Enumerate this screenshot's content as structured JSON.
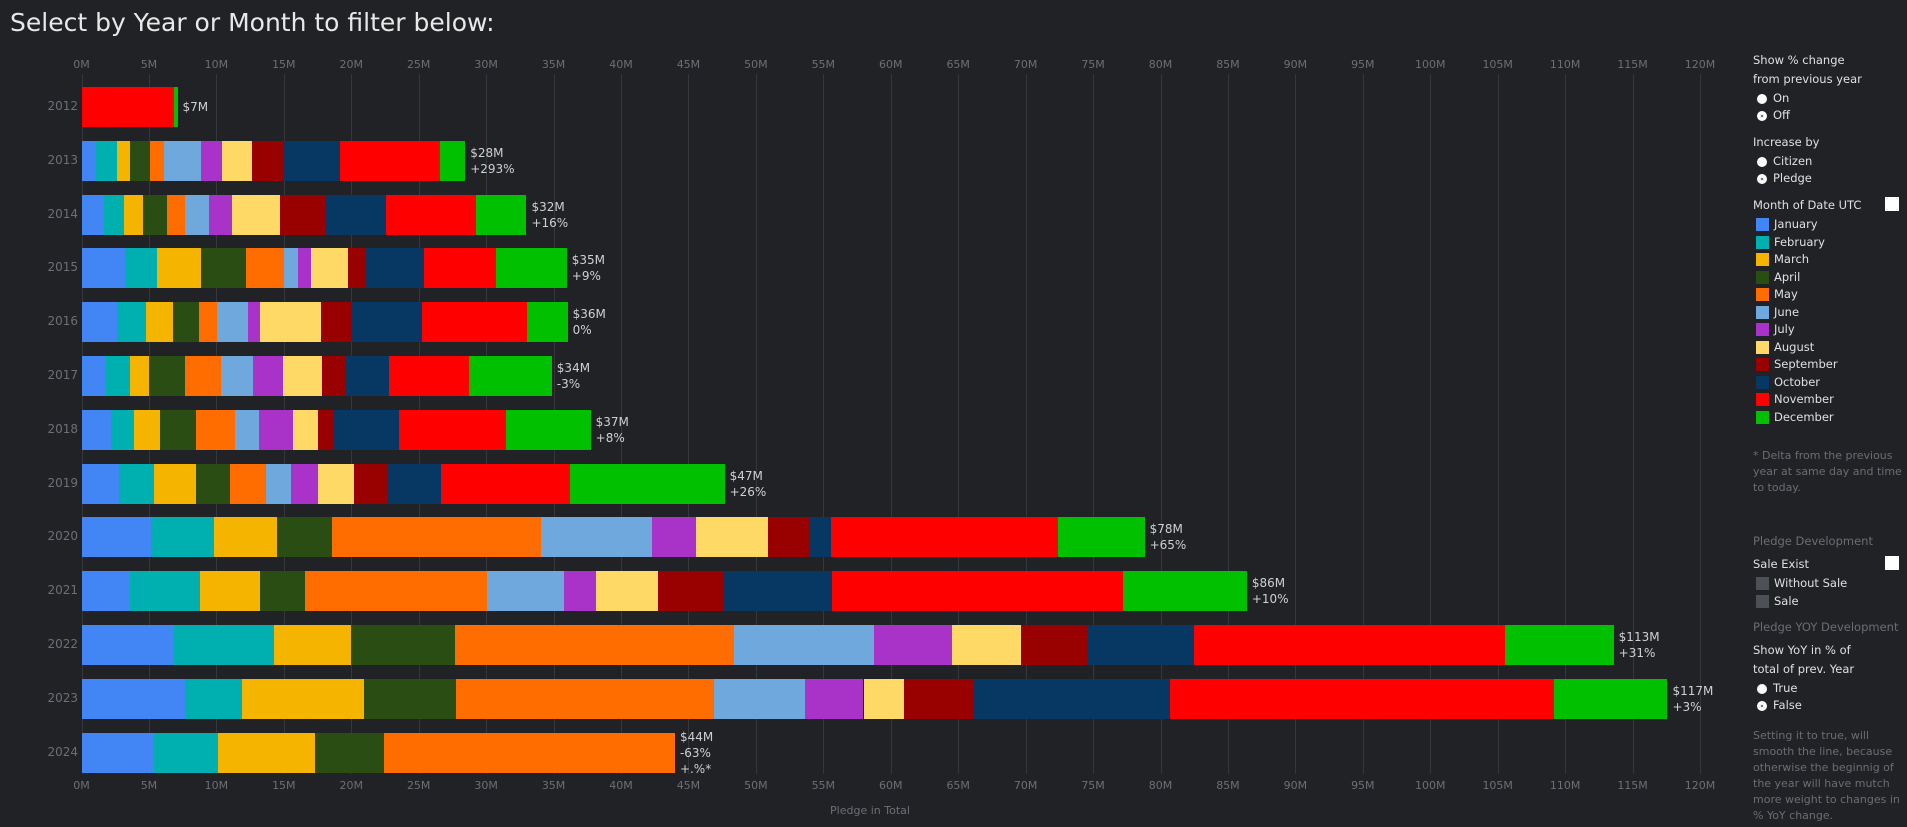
{
  "title": "Select by Year or Month to filter below:",
  "chart_data": {
    "type": "bar",
    "orientation": "horizontal-stacked",
    "xlabel": "Pledge in Total",
    "xlim": [
      0,
      120
    ],
    "x_ticks": [
      "0M",
      "5M",
      "10M",
      "15M",
      "20M",
      "25M",
      "30M",
      "35M",
      "40M",
      "45M",
      "50M",
      "55M",
      "60M",
      "65M",
      "70M",
      "75M",
      "80M",
      "85M",
      "90M",
      "95M",
      "100M",
      "105M",
      "110M",
      "115M",
      "120M"
    ],
    "series_names": [
      "January",
      "February",
      "March",
      "April",
      "May",
      "June",
      "July",
      "August",
      "September",
      "October",
      "November",
      "December"
    ],
    "colors": [
      "#4285f4",
      "#00b0b0",
      "#f4b400",
      "#2a4d14",
      "#ff6d00",
      "#6fa8dc",
      "#a932c8",
      "#ffd966",
      "#990000",
      "#073763",
      "#ff0000",
      "#00c000"
    ],
    "rows": [
      {
        "year": "2012",
        "values": [
          0,
          0,
          0,
          0,
          0,
          0,
          0,
          0,
          0,
          0,
          6.85,
          0.27
        ],
        "label": "$7M",
        "change": ""
      },
      {
        "year": "2013",
        "values": [
          1.08,
          1.56,
          0.99,
          1.42,
          1.08,
          2.76,
          1.5,
          2.22,
          2.44,
          4.09,
          7.41,
          1.9
        ],
        "label": "$28M",
        "change": "+293%"
      },
      {
        "year": "2014",
        "values": [
          1.7,
          1.45,
          1.42,
          1.79,
          1.34,
          1.79,
          1.65,
          3.55,
          3.44,
          4.43,
          6.68,
          3.75
        ],
        "label": "$32M",
        "change": "+16%"
      },
      {
        "year": "2015",
        "values": [
          3.25,
          2.34,
          3.25,
          3.34,
          2.8,
          1.08,
          0.99,
          2.7,
          1.35,
          4.33,
          5.32,
          5.23
        ],
        "label": "$35M",
        "change": "+9%"
      },
      {
        "year": "2016",
        "values": [
          2.61,
          2.16,
          1.98,
          1.98,
          1.35,
          2.25,
          0.9,
          4.51,
          2.34,
          5.14,
          7.84,
          2.98
        ],
        "label": "$36M",
        "change": "0%"
      },
      {
        "year": "2017",
        "values": [
          1.8,
          1.8,
          1.44,
          2.61,
          2.7,
          2.34,
          2.25,
          2.89,
          1.71,
          3.25,
          5.95,
          6.13
        ],
        "label": "$34M",
        "change": "-3%"
      },
      {
        "year": "2018",
        "values": [
          2.16,
          1.71,
          1.98,
          2.61,
          2.89,
          1.8,
          2.52,
          1.89,
          1.17,
          4.78,
          7.93,
          6.31
        ],
        "label": "$37M",
        "change": "+8%"
      },
      {
        "year": "2019",
        "values": [
          2.8,
          2.61,
          3.07,
          2.52,
          2.7,
          1.8,
          2.07,
          2.61,
          2.52,
          3.97,
          9.56,
          11.45
        ],
        "label": "$47M",
        "change": "+26%"
      },
      {
        "year": "2020",
        "values": [
          5.14,
          4.69,
          4.69,
          4.06,
          15.51,
          8.21,
          3.25,
          5.32,
          3.07,
          1.62,
          16.86,
          6.4
        ],
        "label": "$78M",
        "change": "+65%"
      },
      {
        "year": "2021",
        "values": [
          3.61,
          5.14,
          4.51,
          3.34,
          13.44,
          5.77,
          2.34,
          4.6,
          4.87,
          8.03,
          21.55,
          9.2
        ],
        "label": "$86M",
        "change": "+10%"
      },
      {
        "year": "2022",
        "values": [
          6.85,
          7.39,
          5.77,
          7.66,
          20.74,
          10.37,
          5.77,
          5.14,
          4.96,
          7.84,
          23.08,
          8.03
        ],
        "label": "$113M",
        "change": "+31%"
      },
      {
        "year": "2023",
        "values": [
          7.66,
          4.24,
          9.02,
          6.85,
          19.12,
          6.76,
          4.33,
          2.98,
          5.14,
          14.61,
          28.49,
          8.39
        ],
        "label": "$117M",
        "change": "+3%"
      },
      {
        "year": "2024",
        "values": [
          5.41,
          4.69,
          7.21,
          5.14,
          21.55,
          0,
          0,
          0,
          0,
          0,
          0,
          0
        ],
        "label": "$44M",
        "change": "-63%",
        "extra": "+.%*"
      }
    ]
  },
  "panel": {
    "pct_change": {
      "title_1": "Show % change",
      "title_2": "from previous year",
      "options": [
        "On",
        "Off"
      ],
      "selected": "Off"
    },
    "increase_by": {
      "title": "Increase by",
      "options": [
        "Citizen",
        "Pledge"
      ],
      "selected": "Pledge"
    },
    "legend_title": "Month of Date UTC",
    "note": "* Delta from the previous year at same day and time to today.",
    "pledge_dev": "Pledge Development",
    "sale_exist": {
      "title": "Sale Exist",
      "items": [
        "Without Sale",
        "Sale"
      ],
      "color": "#4d5056"
    },
    "yoy_dev": "Pledge YOY Development",
    "yoy_toggle": {
      "title_1": "Show YoY in % of",
      "title_2": "total of prev. Year",
      "options": [
        "True",
        "False"
      ],
      "selected": "False"
    },
    "yoy_note": "Setting it to true, will smooth the line, because otherwise the beginnig of the year will have mutch more weight to changes in % YoY change."
  }
}
